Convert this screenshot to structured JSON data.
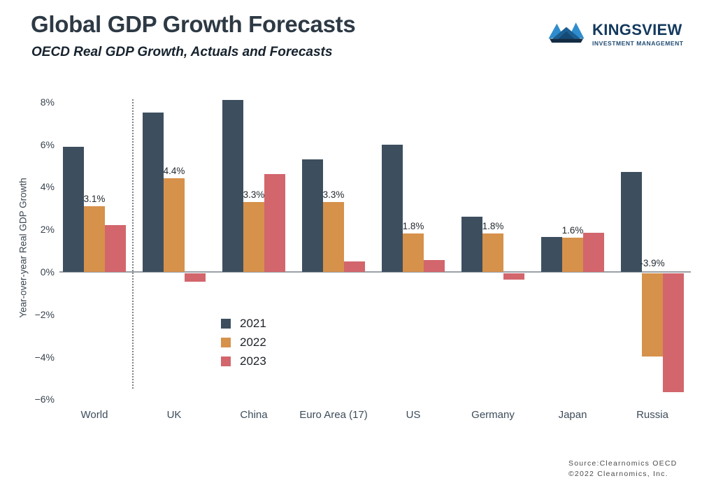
{
  "header": {
    "title": "Global GDP Growth Forecasts",
    "subtitle": "OECD Real GDP Growth, Actuals and Forecasts"
  },
  "logo": {
    "name": "KINGSVIEW",
    "tagline": "INVESTMENT MANAGEMENT",
    "colors": {
      "bright_blue": "#2f8dce",
      "mid_blue": "#1c5f93",
      "dark_blue": "#144a75",
      "base_navy": "#132c44",
      "text_navy": "#14395e"
    }
  },
  "chart_data": {
    "type": "bar",
    "title": "Global GDP Growth Forecasts",
    "subtitle": "OECD Real GDP Growth, Actuals and Forecasts",
    "xlabel": "",
    "ylabel": "Year-over-year Real GDP Growth",
    "categories": [
      "World",
      "UK",
      "China",
      "Euro Area (17)",
      "US",
      "Germany",
      "Japan",
      "Russia"
    ],
    "series": [
      {
        "name": "2021",
        "color": "#3d4f5f",
        "values": [
          5.9,
          7.5,
          8.1,
          5.3,
          6.0,
          2.6,
          1.65,
          4.7
        ]
      },
      {
        "name": "2022",
        "color": "#d6914b",
        "values": [
          3.1,
          4.4,
          3.3,
          3.3,
          1.8,
          1.8,
          1.6,
          -3.9
        ]
      },
      {
        "name": "2023",
        "color": "#d2666c",
        "values": [
          2.2,
          -0.4,
          4.6,
          0.5,
          0.55,
          -0.3,
          1.85,
          -5.6
        ]
      }
    ],
    "bar_labels": {
      "series": "2022",
      "values": [
        "3.1%",
        "4.4%",
        "3.3%",
        "3.3%",
        "1.8%",
        "1.8%",
        "1.6%",
        "-3.9%"
      ]
    },
    "yticks": [
      8,
      6,
      4,
      2,
      0,
      -2,
      -4,
      -6
    ],
    "ytick_labels": [
      "8%",
      "6%",
      "4%",
      "2%",
      "0%",
      "−2%",
      "−4%",
      "−6%"
    ],
    "ylim": [
      -6.5,
      8.5
    ],
    "grid": false,
    "legend_position": "inside-lower-left",
    "separator_after_category": "World"
  },
  "legend": {
    "items": [
      {
        "label": "2021",
        "color": "#3d4f5f"
      },
      {
        "label": "2022",
        "color": "#d6914b"
      },
      {
        "label": "2023",
        "color": "#d2666c"
      }
    ]
  },
  "source": {
    "line1": "Source:Clearnomics OECD",
    "line2": "©2022 Clearnomics, Inc."
  }
}
